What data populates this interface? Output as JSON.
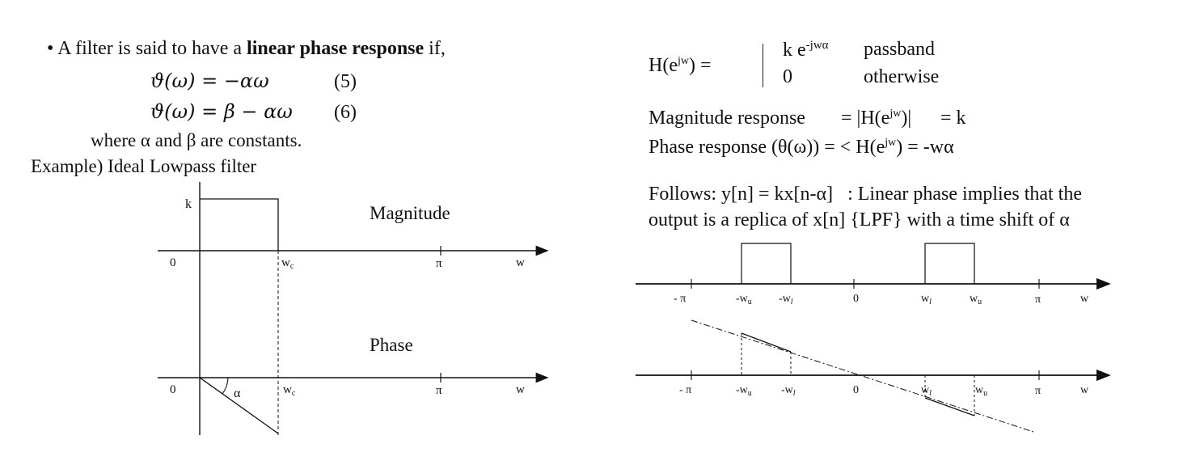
{
  "left": {
    "bullet_prefix": "• A filter is said to have a ",
    "bullet_bold": "linear phase response",
    "bullet_suffix": " if,",
    "eq5": "ϑ(ω) = −αω",
    "eq5_num": "(5)",
    "eq6": "ϑ(ω) = β − αω",
    "eq6_num": "(6)",
    "constants": "where α and β are constants.",
    "example": "Example) Ideal Lowpass filter",
    "magnitude_plot": {
      "title": "Magnitude",
      "k_label": "k",
      "zero_label": "0",
      "wc_label": "w",
      "wc_sub": "c",
      "pi_label": "π",
      "w_label": "w"
    },
    "phase_plot": {
      "title": "Phase",
      "zero_label": "0",
      "alpha_label": "α",
      "wc_label": "w",
      "wc_sub": "c",
      "pi_label": "π",
      "w_label": "w"
    }
  },
  "right": {
    "h_lhs": "H(e",
    "h_sup": "jw",
    "h_lhs_end": ") =",
    "case1_val": "k e",
    "case1_sup": "-jwα",
    "case1_cond": "passband",
    "case2_val": "0",
    "case2_cond": "otherwise",
    "mag_resp_label": "Magnitude response",
    "mag_resp_eq": "= |H(e",
    "mag_resp_sup": "jw",
    "mag_resp_end": ")|",
    "mag_resp_val": "= k",
    "phase_resp_label": "Phase response (θ(ω)) = < H(e",
    "phase_resp_sup": "jw",
    "phase_resp_end": ") = -wα",
    "follows_line1": "Follows: y[n] = kx[n-α]   : Linear phase implies that the",
    "follows_line2": "output is a replica of x[n] {LPF} with a time shift of α",
    "band_plot": {
      "neg_pi": "- π",
      "neg_wu": "-w",
      "neg_wu_sub": "u",
      "neg_wl": "-w",
      "neg_wl_sub": "l",
      "zero": "0",
      "wl": "w",
      "wl_sub": "l",
      "wu": "w",
      "wu_sub": "u",
      "pi": "π",
      "w": "w"
    },
    "phase_plot": {
      "neg_pi": "- π",
      "neg_wu": "-w",
      "neg_wu_sub": "u",
      "neg_wl": "-w",
      "neg_wl_sub": "l",
      "zero": "0",
      "wl": "w",
      "wl_sub": "l",
      "wu": "w",
      "wu_sub": "u",
      "pi": "π",
      "w": "w"
    }
  }
}
